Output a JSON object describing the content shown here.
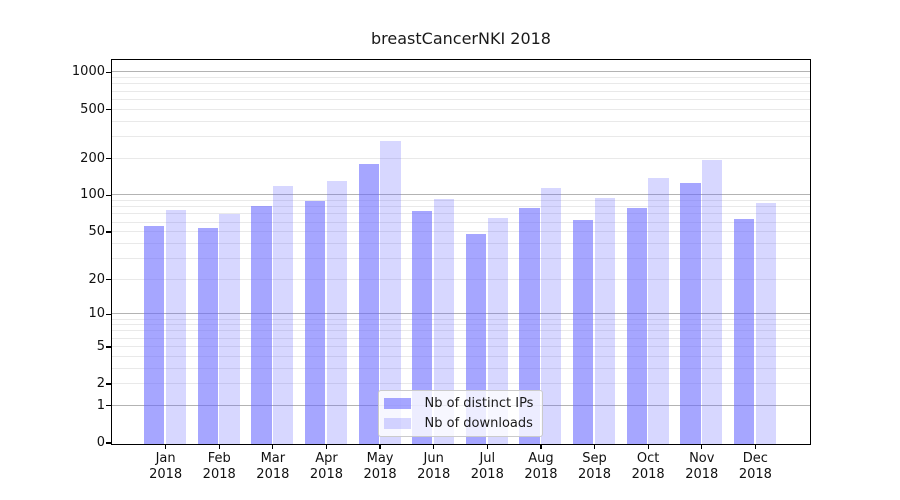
{
  "title": "breastCancerNKI 2018",
  "year_label": "2018",
  "colors": {
    "bar_ips": "rgba(102,102,255,0.58)",
    "bar_downloads": "rgba(102,102,255,0.26)",
    "grid_major": "#b3b3b3",
    "grid_minor": "#e9e9e9",
    "spine": "#000000",
    "legend_bg": "rgba(255,255,255,0.8)",
    "legend_border": "#cbcbcb",
    "text": "#1a1a1a"
  },
  "chart_data": {
    "type": "bar",
    "title": "breastCancerNKI 2018",
    "categories": [
      "Jan",
      "Feb",
      "Mar",
      "Apr",
      "May",
      "Jun",
      "Jul",
      "Aug",
      "Sep",
      "Oct",
      "Nov",
      "Dec"
    ],
    "x_tick_year": "2018",
    "series": [
      {
        "name": "Nb of distinct IPs",
        "color": "rgba(102,102,255,0.58)",
        "values": [
          57,
          55,
          83,
          91,
          181,
          75,
          49,
          80,
          64,
          80,
          127,
          65
        ]
      },
      {
        "name": "Nb of downloads",
        "color": "rgba(102,102,255,0.26)",
        "values": [
          77,
          71,
          120,
          133,
          280,
          95,
          66,
          117,
          96,
          141,
          196,
          88
        ]
      }
    ],
    "xlabel": "",
    "ylabel": "",
    "yscale": "symlog-ln(1+v)",
    "y_ticks": [
      0,
      1,
      2,
      5,
      10,
      20,
      50,
      100,
      200,
      500,
      1000
    ],
    "y_major_gridlines": [
      1,
      10,
      100,
      1000
    ],
    "ylim": [
      0,
      1262
    ],
    "grid": "on",
    "legend_position": "lower center inside"
  }
}
